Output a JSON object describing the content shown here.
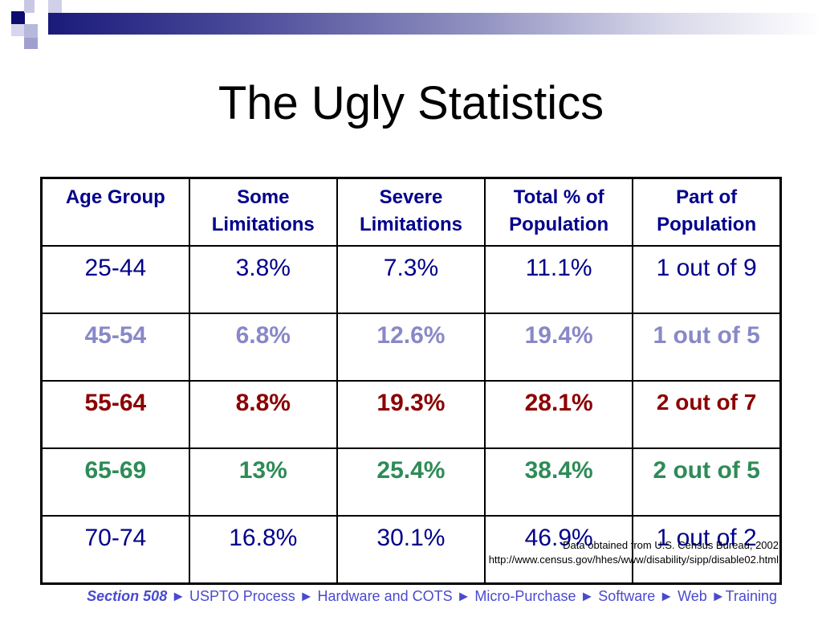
{
  "slide": {
    "title": "The Ugly Statistics"
  },
  "table": {
    "headers": [
      [
        "Age Group",
        ""
      ],
      [
        "Some",
        "Limitations"
      ],
      [
        "Severe",
        "Limitations"
      ],
      [
        "Total % of",
        "Population"
      ],
      [
        "Part of",
        "Population"
      ]
    ],
    "rows": [
      [
        "25-44",
        "3.8%",
        "7.3%",
        "11.1%",
        "1 out of 9"
      ],
      [
        "45-54",
        "6.8%",
        "12.6%",
        "19.4%",
        "1 out of 5"
      ],
      [
        "55-64",
        "8.8%",
        "19.3%",
        "28.1%",
        "2 out of 7"
      ],
      [
        "65-69",
        "13%",
        "25.4%",
        "38.4%",
        "2 out of 5"
      ],
      [
        "70-74",
        "16.8%",
        "30.1%",
        "46.9%",
        "1 out of 2"
      ]
    ]
  },
  "source": {
    "line1": "Data obtained from U.S. Census Bureau, 2002",
    "line2": "http://www.census.gov/hhes/www/disability/sipp/disable02.html"
  },
  "footer": {
    "lead": "Section 508",
    "rest": " ► USPTO Process ► Hardware and COTS ► Micro-Purchase ► Software ► Web ►Training"
  },
  "colors": {
    "header_text": "#00008b",
    "row_blue": "#8888c8",
    "row_red": "#8b0000",
    "row_green": "#2e8b57",
    "footer_text": "#4a4acf"
  }
}
